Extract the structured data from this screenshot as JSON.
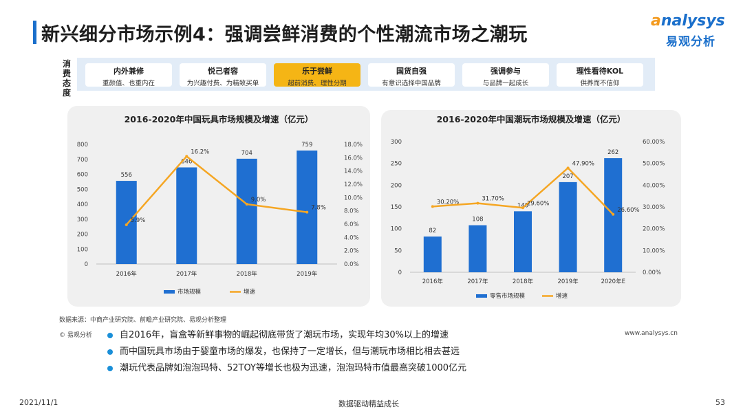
{
  "title": "新兴细分市场示例4：强调尝鲜消费的个性潮流市场之潮玩",
  "logo": {
    "en_prefix": "a",
    "en_rest": "nalysys",
    "cn": "易观分析"
  },
  "attitude": {
    "label_chars": [
      "消",
      "费",
      "态",
      "度"
    ],
    "cards": [
      {
        "title": "内外兼修",
        "sub": "重颜值、也重内在",
        "highlight": false
      },
      {
        "title": "悦己者容",
        "sub": "为兴趣付费、为精致买单",
        "highlight": false
      },
      {
        "title": "乐于尝鲜",
        "sub": "超前消费、理性分期",
        "highlight": true
      },
      {
        "title": "国货自强",
        "sub": "有意识选择中国品牌",
        "highlight": false
      },
      {
        "title": "强调参与",
        "sub": "与品牌一起成长",
        "highlight": false
      },
      {
        "title": "理性看待KOL",
        "sub": "供养而不信仰",
        "highlight": false
      }
    ]
  },
  "colors": {
    "bar": "#1f6fd1",
    "line": "#f5a623",
    "accent": "#1a6fcb"
  },
  "chart_data": [
    {
      "type": "bar",
      "title": "2016-2020年中国玩具市场规模及增速（亿元）",
      "categories": [
        "2016年",
        "2017年",
        "2018年",
        "2019年"
      ],
      "series": [
        {
          "name": "市场规模",
          "type": "bar",
          "axis": "left",
          "values": [
            556,
            646,
            704,
            759
          ],
          "labels": [
            "556",
            "646",
            "704",
            "759"
          ]
        },
        {
          "name": "增速",
          "type": "line",
          "axis": "right",
          "values": [
            5.9,
            16.2,
            9.0,
            7.8
          ],
          "labels": [
            "5.9%",
            "16.2%",
            "9.0%",
            "7.8%"
          ]
        }
      ],
      "y_left": {
        "min": 0,
        "max": 800,
        "ticks": [
          "0",
          "100",
          "200",
          "300",
          "400",
          "500",
          "600",
          "700",
          "800"
        ]
      },
      "y_right": {
        "min": 0,
        "max": 18,
        "ticks": [
          "0.0%",
          "2.0%",
          "4.0%",
          "6.0%",
          "8.0%",
          "10.0%",
          "12.0%",
          "14.0%",
          "16.0%",
          "18.0%"
        ]
      },
      "legend": "bottom"
    },
    {
      "type": "bar",
      "title": "2016-2020年中国潮玩市场规模及增速（亿元）",
      "categories": [
        "2016年",
        "2017年",
        "2018年",
        "2019年",
        "2020年E"
      ],
      "series": [
        {
          "name": "零售市场规模",
          "type": "bar",
          "axis": "left",
          "values": [
            82,
            108,
            140,
            207,
            262
          ],
          "labels": [
            "82",
            "108",
            "140",
            "207",
            "262"
          ]
        },
        {
          "name": "增速",
          "type": "line",
          "axis": "right",
          "values": [
            30.2,
            31.7,
            29.6,
            47.9,
            26.6
          ],
          "labels": [
            "30.20%",
            "31.70%",
            "29.60%",
            "47.90%",
            "26.60%"
          ]
        }
      ],
      "y_left": {
        "min": 0,
        "max": 300,
        "ticks": [
          "0",
          "50",
          "100",
          "150",
          "200",
          "250",
          "300"
        ]
      },
      "y_right": {
        "min": 0,
        "max": 60,
        "ticks": [
          "0.00%",
          "10.00%",
          "20.00%",
          "30.00%",
          "40.00%",
          "50.00%",
          "60.00%"
        ]
      },
      "legend": "bottom"
    }
  ],
  "source": "数据来源：中商产业研究院、前瞻产业研究院、易观分析整理",
  "footer_logo": "© 易观分析",
  "footer_web": "www.analysys.cn",
  "bullets": [
    "自2016年，盲盒等新鲜事物的崛起彻底带货了潮玩市场，实现年均30%以上的增速",
    "而中国玩具市场由于婴童市场的爆发，也保持了一定增长，但与潮玩市场相比相去甚远",
    "潮玩代表品牌如泡泡玛特、52TOY等增长也极为迅速，泡泡玛特市值最高突破1000亿元"
  ],
  "bottom": {
    "date": "2021/11/1",
    "slogan": "数据驱动精益成长",
    "page": "53"
  }
}
